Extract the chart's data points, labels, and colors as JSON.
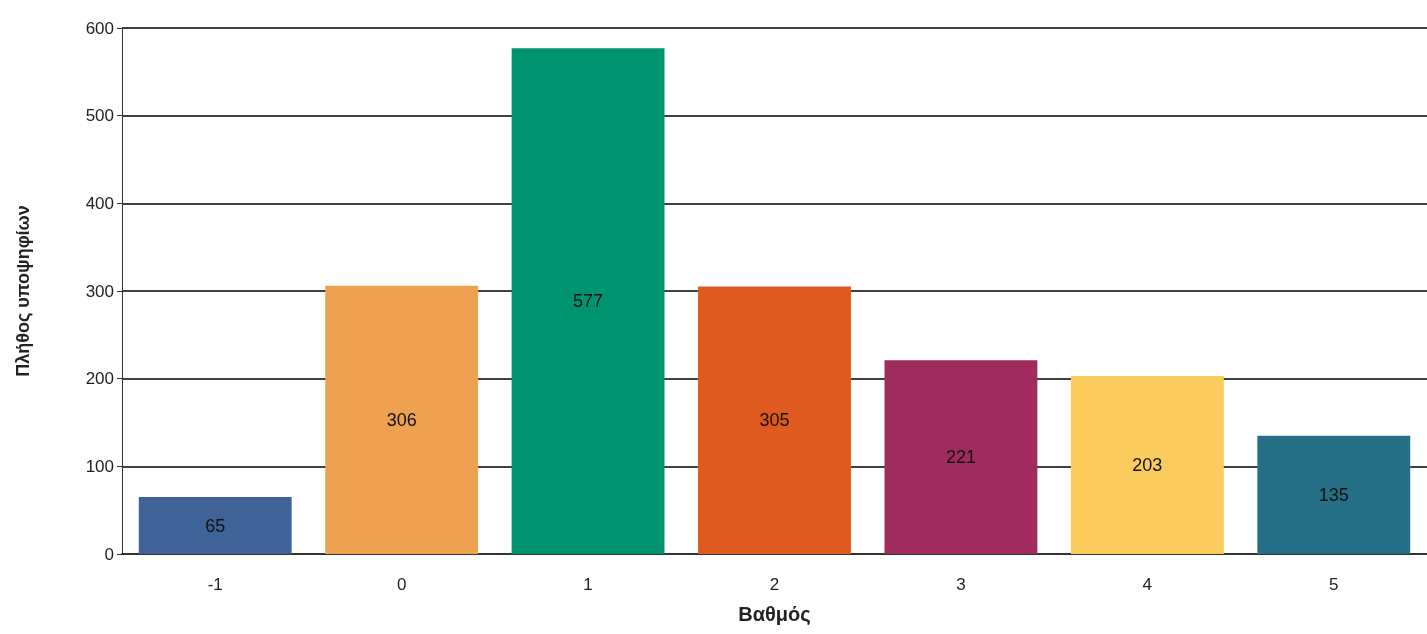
{
  "chart_data": {
    "type": "bar",
    "xlabel": "Βαθμός",
    "ylabel": "Πλήθος υποψηφίων",
    "categories": [
      "-1",
      "0",
      "1",
      "2",
      "3",
      "4",
      "5"
    ],
    "values": [
      65,
      306,
      577,
      305,
      221,
      203,
      135
    ],
    "colors": [
      "#3f6399",
      "#eea151",
      "#009370",
      "#de5a1f",
      "#a02b5f",
      "#fccb5d",
      "#267087"
    ],
    "ylim": [
      0,
      600
    ],
    "yticks": [
      0,
      100,
      200,
      300,
      400,
      500,
      600
    ],
    "grid": "y",
    "data_labels": true
  }
}
